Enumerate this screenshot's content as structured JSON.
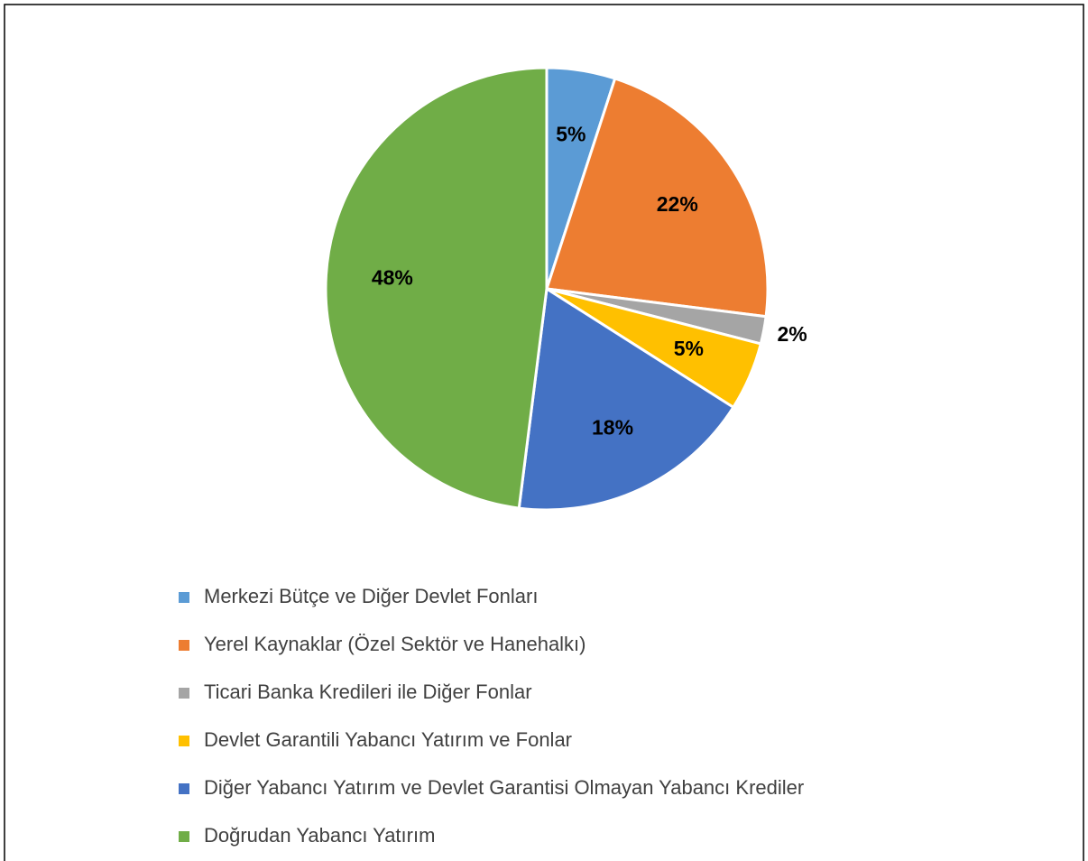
{
  "chart_data": {
    "type": "pie",
    "categories": [
      "Merkezi Bütçe ve Diğer Devlet Fonları",
      "Yerel Kaynaklar (Özel Sektör ve Hanehalkı)",
      "Ticari Banka Kredileri ile Diğer Fonlar",
      "Devlet Garantili Yabancı Yatırım ve Fonlar",
      "Diğer Yabancı Yatırım ve Devlet Garantisi Olmayan Yabancı Krediler",
      "Doğrudan Yabancı Yatırım"
    ],
    "values": [
      5,
      22,
      2,
      5,
      18,
      48
    ],
    "value_labels": [
      "5%",
      "22%",
      "2%",
      "5%",
      "18%",
      "48%"
    ],
    "colors": [
      "#5b9bd5",
      "#ed7d31",
      "#a5a5a5",
      "#ffc000",
      "#4472c4",
      "#70ad47"
    ],
    "legend": "bottom"
  }
}
